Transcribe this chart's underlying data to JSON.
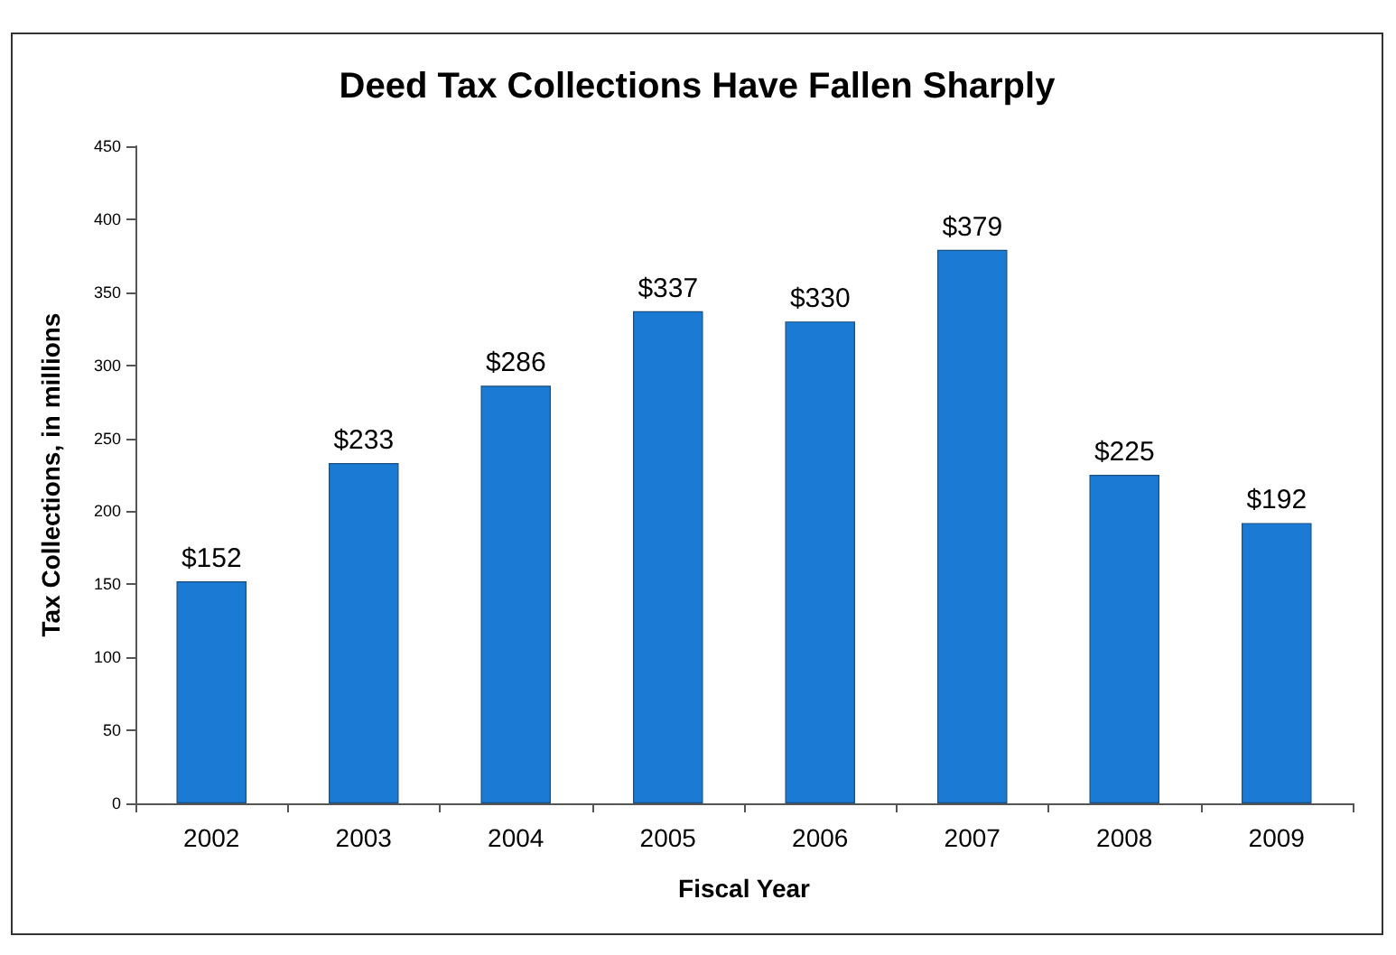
{
  "chart_data": {
    "type": "bar",
    "title": "Deed Tax Collections Have Fallen Sharply",
    "xlabel": "Fiscal Year",
    "ylabel": "Tax Collections, in millions",
    "categories": [
      "2002",
      "2003",
      "2004",
      "2005",
      "2006",
      "2007",
      "2008",
      "2009"
    ],
    "values": [
      152,
      233,
      286,
      337,
      330,
      379,
      225,
      192
    ],
    "value_labels": [
      "$152",
      "$233",
      "$286",
      "$337",
      "$330",
      "$379",
      "$225",
      "$192"
    ],
    "color": "#1a7ad4",
    "ylim": [
      0,
      450
    ],
    "yticks": [
      0,
      50,
      100,
      150,
      200,
      250,
      300,
      350,
      400,
      450
    ],
    "grid": false
  }
}
